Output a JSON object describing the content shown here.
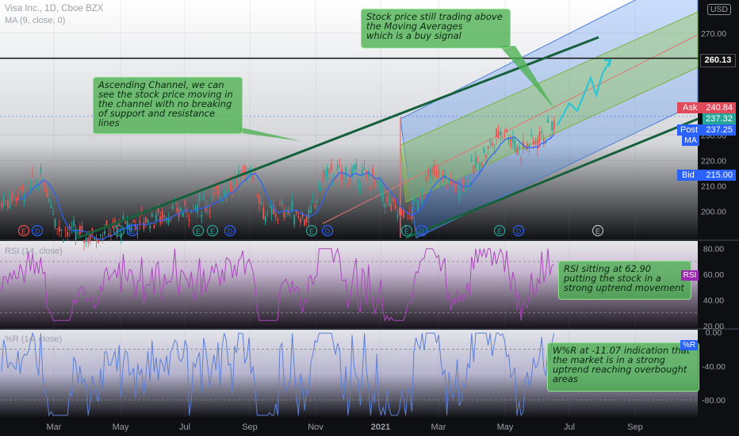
{
  "header": {
    "title": "Visa Inc., 1D, Cboe BZX",
    "ma_legend": "MA (9, close, 0)",
    "currency": "USD"
  },
  "notes": {
    "channel": "Ascending Channel, we can\nsee the stock price moving in\nthe channel with no breaking\nof support and resistance\nlines",
    "ma": "Stock price still trading above\nthe Moving Averages\nwhich is a buy signal",
    "rsi": "RSI sitting at 62.90\nputting the stock in a\nstrong uptrend movement",
    "wr": "W%R at -11.07 indication that\nthe market is in a strong\nuptrend reaching overbought\nareas"
  },
  "price_tags": {
    "line": "260.13",
    "ask": "Ask",
    "ask_val": "240.84",
    "ma_val": "237.32",
    "post": "Post",
    "post_val": "237.25",
    "ma": "MA",
    "bid": "Bid",
    "bid_val": "215.00"
  },
  "indicator_labels": {
    "rsi_legend": "RSI (14, close)",
    "rsi_tag": "RSI",
    "wr_legend": "%R (14, close)",
    "wr_tag": "%R"
  },
  "colors": {
    "background": "#0e0f12",
    "up": "#26a69a",
    "down": "#ef5350",
    "ma": "#2962ff",
    "rsi": "#ab47bc",
    "wr": "#5b7fd6",
    "note": "#4caf50",
    "trendline": "#1b5e3a"
  },
  "chart_data": [
    {
      "type": "candlestick",
      "title": "Visa Inc., 1D, Cboe BZX",
      "x_labels": [
        "Mar",
        "May",
        "Jul",
        "Sep",
        "Nov",
        "2021",
        "Mar",
        "May",
        "Jul",
        "Sep"
      ],
      "y_ticks": [
        200,
        210,
        220,
        230,
        270
      ],
      "ylim": [
        189,
        283
      ],
      "series": [
        {
          "name": "MA (9, close, 0)",
          "type": "line",
          "start": "2020-01-01",
          "end": "2021-06-25",
          "range": [
            186,
            237
          ]
        }
      ],
      "annotations": {
        "horizontal_line": 260.13,
        "ask": 240.84,
        "ma_last": 237.32,
        "post": 237.25,
        "bid": 215.0,
        "earnings_markers": [
          "E",
          "D"
        ]
      },
      "channel": {
        "type": "ascending pitchfork",
        "midline_projection_target": 260.13
      }
    },
    {
      "type": "line",
      "title": "RSI (14, close)",
      "y_ticks": [
        20,
        40,
        60,
        80
      ],
      "ylim": [
        18,
        86
      ],
      "bands": [
        30,
        70
      ],
      "last_value": 62.9
    },
    {
      "type": "line",
      "title": "%R (14, close)",
      "y_ticks": [
        0,
        -40,
        -80
      ],
      "ylim": [
        -100,
        3
      ],
      "bands": [
        -20,
        -80
      ],
      "last_value": -11.07
    }
  ]
}
